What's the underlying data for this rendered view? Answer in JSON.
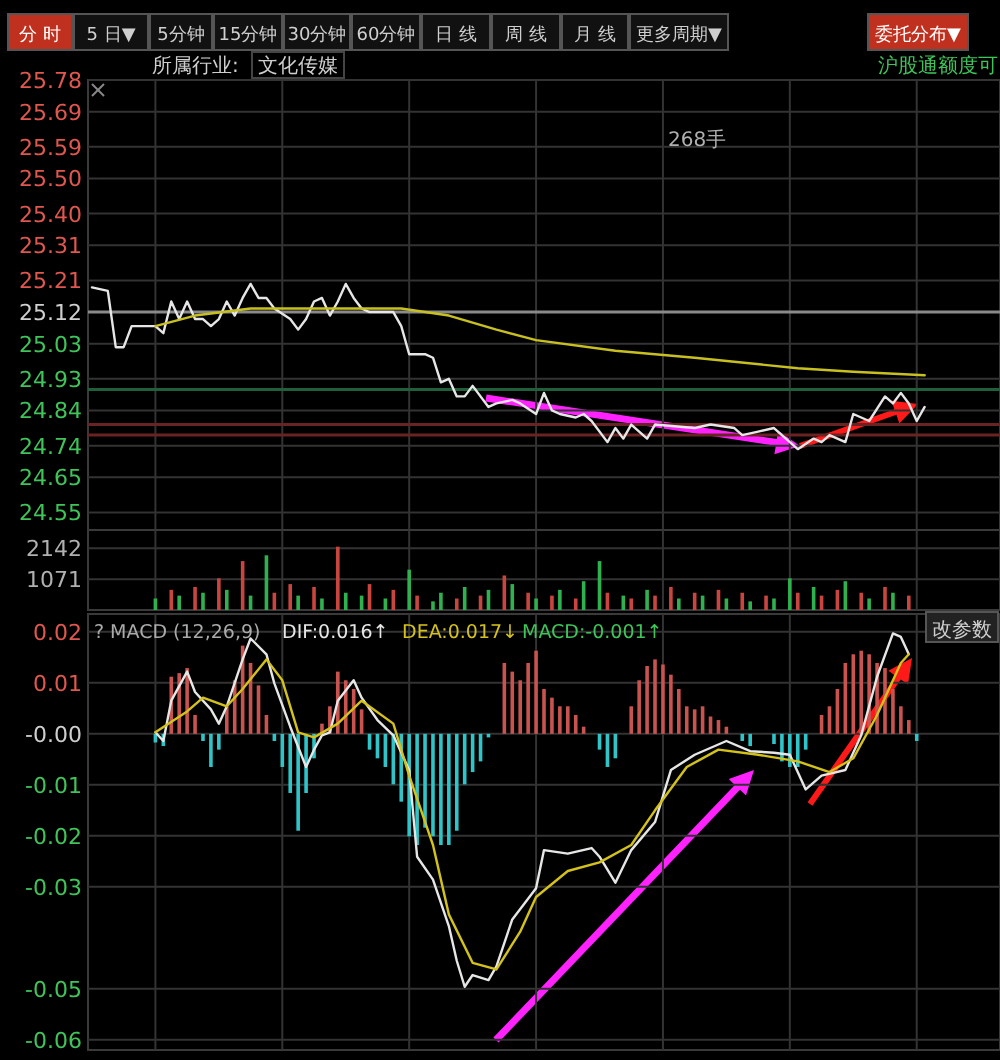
{
  "chart_data": [
    {
      "type": "line",
      "ylim": [
        24.5,
        25.78
      ],
      "grid": true,
      "tick_labels": "y",
      "categories": [
        null,
        null,
        null,
        null,
        null,
        null,
        null,
        null,
        null,
        null,
        null,
        null,
        null,
        null,
        null,
        null,
        null,
        null,
        null,
        null,
        null,
        null,
        null,
        null,
        null,
        null,
        null,
        null,
        null,
        null,
        null,
        null,
        null,
        null,
        null,
        null,
        null,
        null,
        null,
        null,
        null,
        null,
        null,
        null,
        null,
        null,
        null,
        null,
        null,
        null,
        null,
        null,
        null,
        null,
        null,
        null,
        null,
        null,
        null,
        null,
        null,
        null,
        null,
        null,
        null,
        null,
        null,
        null,
        null,
        null,
        null,
        null,
        null,
        null,
        null,
        null,
        null,
        null,
        null,
        null,
        null,
        null,
        null,
        null,
        null,
        null,
        null,
        null,
        null,
        null,
        null,
        null,
        null,
        null,
        null,
        null,
        null,
        null,
        null,
        null,
        null,
        null,
        null,
        null,
        null,
        null,
        null,
        null,
        null,
        null,
        null,
        null,
        null,
        null,
        null
      ],
      "yticks": [
        24.55,
        24.65,
        24.74,
        24.84,
        24.93,
        25.03,
        25.12,
        25.21,
        25.31,
        {
          "value": 25.4,
          "label": "25.40"
        },
        {
          "value": 25.5,
          "label": "25.50"
        },
        25.59,
        25.69,
        25.78
      ],
      "ref_lines": [
        {
          "axis": "y",
          "value": 25.12,
          "color": "#8a8a8a"
        },
        {
          "axis": "y",
          "value": 24.9,
          "color": "#1f5f3a"
        },
        {
          "axis": "y",
          "value": 24.8,
          "color": "#6a2323"
        },
        {
          "axis": "y",
          "value": 24.77,
          "color": "#6a2323"
        }
      ],
      "annotations": [
        "分 时",
        "5 日▼",
        "5分钟",
        "15分钟",
        "30分钟",
        "60分钟",
        "日 线",
        "周 线",
        "月 线",
        "更多周期▼",
        "委托分布▼",
        "所属行业:",
        "文化传媒",
        "沪股通额度可",
        "268手"
      ],
      "series": [
        {
          "color": "#e6e6e6",
          "values": [
            25.19,
            null,
            25.18,
            25.02,
            25.02,
            25.08,
            null,
            null,
            25.08,
            25.06,
            25.15,
            25.1,
            25.15,
            25.1,
            25.1,
            25.08,
            25.1,
            25.15,
            25.11,
            25.16,
            25.2,
            25.16,
            25.16,
            25.13,
            null,
            25.1,
            25.07,
            25.1,
            25.15,
            25.16,
            25.11,
            25.15,
            25.2,
            25.16,
            25.13,
            25.12,
            null,
            null,
            25.12,
            25.08,
            25.0,
            null,
            25.0,
            24.99,
            24.92,
            24.93,
            24.88,
            24.88,
            24.91,
            null,
            24.85,
            24.86,
            null,
            24.87,
            24.86,
            null,
            24.83,
            24.89,
            24.84,
            24.83,
            null,
            24.82,
            24.83,
            24.81,
            null,
            24.75,
            24.79,
            24.76,
            24.8,
            null,
            24.76,
            24.8,
            null,
            null,
            null,
            null,
            24.79,
            null,
            24.8,
            null,
            null,
            24.79,
            24.77,
            null,
            24.78,
            null,
            24.79,
            null,
            24.75,
            24.73,
            null,
            24.76,
            24.75,
            24.77,
            null,
            24.75,
            24.83,
            null,
            24.81,
            null,
            24.88,
            24.86,
            24.89,
            24.86,
            24.81,
            24.85,
            null,
            null,
            null,
            null,
            null,
            null,
            null,
            null,
            null
          ]
        },
        {
          "color": "#c8c020",
          "values": [
            null,
            null,
            null,
            null,
            null,
            null,
            null,
            null,
            25.08,
            null,
            null,
            null,
            null,
            25.11,
            null,
            null,
            null,
            null,
            null,
            null,
            25.13,
            null,
            null,
            null,
            null,
            null,
            null,
            null,
            null,
            null,
            null,
            null,
            null,
            null,
            null,
            null,
            null,
            null,
            null,
            25.13,
            null,
            null,
            null,
            null,
            null,
            25.11,
            null,
            null,
            null,
            null,
            null,
            25.07,
            null,
            null,
            null,
            null,
            25.04,
            null,
            null,
            null,
            null,
            null,
            null,
            null,
            null,
            null,
            25.01,
            null,
            null,
            null,
            null,
            null,
            null,
            null,
            null,
            null,
            24.99,
            null,
            null,
            null,
            null,
            null,
            null,
            null,
            null,
            null,
            null,
            null,
            null,
            24.96,
            null,
            null,
            null,
            null,
            null,
            null,
            24.95,
            null,
            null,
            null,
            null,
            null,
            null,
            null,
            null,
            24.94,
            null,
            null,
            null,
            null,
            null,
            null,
            null,
            null,
            null
          ]
        }
      ]
    },
    {
      "type": "bar",
      "ylim": [
        0,
        2780
      ],
      "grid": true,
      "tick_labels": "y",
      "categories": [
        null,
        null,
        null,
        null,
        null,
        null,
        null,
        null,
        null,
        null,
        null,
        null,
        null,
        null,
        null,
        null,
        null,
        null,
        null,
        null,
        null,
        null,
        null,
        null,
        null,
        null,
        null,
        null,
        null,
        null,
        null,
        null,
        null,
        null,
        null,
        null,
        null,
        null,
        null,
        null,
        null,
        null,
        null,
        null,
        null,
        null,
        null,
        null,
        null,
        null,
        null,
        null,
        null,
        null,
        null,
        null,
        null,
        null,
        null,
        null,
        null,
        null,
        null,
        null,
        null,
        null,
        null,
        null,
        null,
        null,
        null,
        null,
        null,
        null,
        null,
        null,
        null,
        null,
        null,
        null,
        null,
        null,
        null,
        null,
        null,
        null,
        null,
        null,
        null,
        null,
        null,
        null,
        null,
        null,
        null,
        null,
        null,
        null,
        null,
        null,
        null,
        null,
        null,
        null,
        null,
        null,
        null,
        null,
        null,
        null,
        null,
        null,
        null,
        null,
        null
      ],
      "yticks": [
        1071,
        2142
      ],
      "series": [
        {
          "color": "#c9453f",
          "values": [
            null,
            null,
            null,
            null,
            null,
            null,
            null,
            null,
            null,
            null,
            700,
            null,
            null,
            800,
            null,
            null,
            1100,
            null,
            null,
            1700,
            null,
            null,
            null,
            600,
            null,
            900,
            null,
            null,
            800,
            null,
            null,
            2200,
            null,
            null,
            null,
            900,
            null,
            null,
            700,
            null,
            null,
            500,
            null,
            null,
            null,
            null,
            400,
            null,
            null,
            500,
            null,
            null,
            1200,
            null,
            null,
            600,
            null,
            null,
            500,
            null,
            null,
            400,
            null,
            null,
            null,
            600,
            null,
            null,
            400,
            null,
            null,
            500,
            null,
            800,
            null,
            null,
            600,
            null,
            null,
            700,
            null,
            null,
            600,
            null,
            null,
            500,
            null,
            null,
            null,
            600,
            null,
            null,
            500,
            null,
            700,
            null,
            null,
            600,
            null,
            null,
            800,
            null,
            null,
            500,
            null,
            null,
            null,
            null,
            null,
            null,
            null,
            null,
            null,
            null,
            null
          ]
        },
        {
          "color": "#2fb14f",
          "values": [
            null,
            null,
            null,
            null,
            null,
            null,
            null,
            null,
            400,
            null,
            null,
            500,
            null,
            null,
            600,
            null,
            null,
            700,
            null,
            null,
            500,
            null,
            1900,
            null,
            null,
            null,
            500,
            null,
            null,
            400,
            null,
            null,
            600,
            null,
            500,
            null,
            null,
            400,
            null,
            null,
            1400,
            null,
            null,
            300,
            600,
            null,
            null,
            800,
            null,
            null,
            700,
            null,
            null,
            900,
            null,
            null,
            400,
            null,
            null,
            700,
            null,
            null,
            1000,
            null,
            1700,
            null,
            null,
            500,
            null,
            null,
            700,
            null,
            null,
            null,
            400,
            null,
            null,
            500,
            null,
            null,
            400,
            null,
            null,
            300,
            null,
            null,
            400,
            null,
            1100,
            null,
            null,
            800,
            null,
            null,
            null,
            1000,
            null,
            null,
            400,
            null,
            null,
            600,
            null,
            null,
            null,
            null,
            null,
            null,
            null,
            null,
            null,
            null,
            null,
            null,
            null
          ]
        }
      ]
    },
    {
      "type": "line",
      "ylim": [
        -0.062,
        0.0235
      ],
      "grid": true,
      "tick_labels": "y",
      "categories": [
        null,
        null,
        null,
        null,
        null,
        null,
        null,
        null,
        null,
        null,
        null,
        null,
        null,
        null,
        null,
        null,
        null,
        null,
        null,
        null,
        null,
        null,
        null,
        null,
        null,
        null,
        null,
        null,
        null,
        null,
        null,
        null,
        null,
        null,
        null,
        null,
        null,
        null,
        null,
        null,
        null,
        null,
        null,
        null,
        null,
        null,
        null,
        null,
        null,
        null,
        null,
        null,
        null,
        null,
        null,
        null,
        null,
        null,
        null,
        null,
        null,
        null,
        null,
        null,
        null,
        null,
        null,
        null,
        null,
        null,
        null,
        null,
        null,
        null,
        null,
        null,
        null,
        null,
        null,
        null,
        null,
        null,
        null,
        null,
        null,
        null,
        null,
        null,
        null,
        null,
        null,
        null,
        null,
        null,
        null,
        null,
        null,
        null,
        null,
        null,
        null,
        null,
        null,
        null,
        null,
        null,
        null,
        null,
        null,
        null,
        null,
        null,
        null,
        null,
        null
      ],
      "yticks": [
        {
          "value": 0.02,
          "label": "0.02"
        },
        {
          "value": 0.01,
          "label": "0.01"
        },
        {
          "value": 0,
          "label": "-0.00"
        },
        {
          "value": -0.01,
          "label": "-0.01"
        },
        {
          "value": -0.02,
          "label": "-0.02"
        },
        {
          "value": -0.03,
          "label": "-0.03"
        },
        {
          "value": -0.05,
          "label": "-0.05"
        },
        {
          "value": -0.06,
          "label": "-0.06"
        }
      ],
      "annotations": [
        "? MACD (12,26,9)",
        "DIF:0.016↑",
        "DEA:0.017↓",
        "MACD:-0.001↑",
        "改参数"
      ],
      "series": [
        {
          "type": "bar",
          "color": "#c9534f",
          "values": [
            null,
            null,
            null,
            null,
            null,
            null,
            null,
            null,
            null,
            null,
            0.0112,
            0.0119,
            0.0129,
            0.0037,
            null,
            null,
            null,
            0.0054,
            0.0105,
            0.0173,
            0.0139,
            0.0095,
            0.0037,
            null,
            null,
            null,
            null,
            null,
            null,
            0.002,
            0.0054,
            0.0122,
            0.0105,
            0.0088,
            0.0048,
            null,
            null,
            null,
            null,
            null,
            null,
            null,
            null,
            null,
            null,
            null,
            null,
            null,
            null,
            null,
            null,
            null,
            0.0139,
            0.0122,
            0.0105,
            0.0139,
            0.0163,
            0.0088,
            0.0071,
            0.0054,
            0.0054,
            0.0037,
            0.0014,
            null,
            null,
            null,
            null,
            null,
            0.0054,
            0.0105,
            0.0133,
            0.0146,
            0.0136,
            0.0116,
            0.0088,
            0.0054,
            0.0048,
            0.0054,
            0.0034,
            0.0027,
            0.0014,
            null,
            null,
            null,
            null,
            null,
            null,
            null,
            null,
            null,
            null,
            null,
            0.0037,
            0.0054,
            0.0088,
            0.0139,
            0.0156,
            0.0163,
            0.0156,
            0.0139,
            0.0129,
            0.0088,
            0.0054,
            0.0027,
            null,
            null,
            null,
            null,
            null,
            null,
            null,
            null,
            null,
            null,
            null
          ]
        },
        {
          "type": "bar",
          "color": "#2ec4c8",
          "values": [
            null,
            null,
            null,
            null,
            null,
            null,
            null,
            null,
            -0.0017,
            -0.0024,
            null,
            null,
            null,
            null,
            -0.0014,
            -0.0065,
            -0.0031,
            null,
            null,
            null,
            null,
            null,
            null,
            -0.0014,
            -0.0065,
            -0.0116,
            -0.019,
            -0.0116,
            -0.0048,
            null,
            null,
            null,
            null,
            null,
            null,
            -0.0031,
            -0.0048,
            -0.0065,
            -0.0099,
            -0.0133,
            -0.0201,
            -0.0218,
            -0.0184,
            -0.0201,
            -0.0218,
            -0.0218,
            -0.019,
            -0.0099,
            -0.0075,
            -0.0054,
            -0.0007,
            null,
            null,
            null,
            null,
            null,
            null,
            null,
            null,
            null,
            null,
            null,
            null,
            null,
            -0.0031,
            -0.0065,
            -0.0048,
            null,
            null,
            null,
            null,
            null,
            null,
            null,
            null,
            null,
            null,
            null,
            null,
            null,
            null,
            null,
            -0.0014,
            -0.0024,
            null,
            null,
            -0.002,
            -0.0054,
            -0.0065,
            -0.0065,
            -0.0031,
            null,
            null,
            null,
            null,
            null,
            null,
            null,
            null,
            null,
            null,
            null,
            null,
            null,
            -0.0014,
            null,
            null,
            null,
            null,
            null,
            null,
            null,
            null,
            null,
            null
          ]
        },
        {
          "color": "#e6e6e6",
          "values": [
            null,
            null,
            null,
            null,
            null,
            null,
            null,
            null,
            0.0003,
            -0.0014,
            0.0065,
            null,
            0.0122,
            0.0082,
            null,
            0.0048,
            0.002,
            0.0054,
            null,
            0.0146,
            0.0187,
            null,
            0.0156,
            0.0099,
            null,
            0.0014,
            null,
            -0.0065,
            -0.0031,
            -0.0003,
            0.0003,
            0.0065,
            null,
            0.0105,
            0.0071,
            null,
            0.0027,
            null,
            -0.0003,
            null,
            -0.0071,
            -0.0241,
            null,
            -0.0286,
            null,
            -0.0377,
            -0.0445,
            -0.0496,
            -0.0473,
            null,
            -0.0483,
            -0.0456,
            null,
            -0.0364,
            null,
            null,
            -0.0303,
            -0.0228,
            null,
            null,
            -0.0235,
            null,
            null,
            -0.0224,
            -0.0241,
            null,
            -0.0292,
            null,
            -0.0228,
            null,
            null,
            -0.0173,
            null,
            -0.0071,
            null,
            null,
            -0.0041,
            null,
            null,
            null,
            -0.0014,
            null,
            null,
            -0.0034,
            null,
            null,
            -0.0037,
            null,
            -0.0041,
            null,
            -0.0109,
            null,
            -0.0082,
            null,
            null,
            -0.0071,
            null,
            -0.0003,
            null,
            0.0112,
            null,
            0.0197,
            0.019,
            0.0156,
            null,
            null,
            null,
            null,
            null,
            null,
            null,
            null,
            null,
            null,
            null
          ]
        },
        {
          "color": "#d4c21a",
          "values": [
            null,
            null,
            null,
            null,
            null,
            null,
            null,
            null,
            0.0003,
            null,
            null,
            null,
            0.0044,
            null,
            0.0071,
            null,
            null,
            0.0054,
            null,
            0.0088,
            null,
            null,
            0.0146,
            null,
            0.0105,
            null,
            0.0003,
            null,
            -0.0007,
            null,
            null,
            0.002,
            null,
            null,
            0.0065,
            null,
            null,
            null,
            0.002,
            null,
            -0.0082,
            null,
            null,
            -0.0218,
            null,
            -0.0354,
            null,
            null,
            -0.0449,
            null,
            null,
            -0.0462,
            null,
            null,
            -0.0388,
            null,
            -0.032,
            null,
            null,
            null,
            -0.0269,
            null,
            null,
            null,
            -0.0252,
            null,
            null,
            null,
            -0.0218,
            null,
            null,
            -0.015,
            null,
            null,
            null,
            -0.0065,
            null,
            null,
            null,
            -0.0031,
            null,
            null,
            null,
            null,
            -0.0041,
            null,
            null,
            null,
            null,
            -0.0054,
            null,
            null,
            null,
            -0.0075,
            null,
            null,
            -0.0048,
            null,
            null,
            0.0037,
            null,
            null,
            0.0139,
            0.0156,
            null,
            null,
            null,
            null,
            null,
            null,
            null,
            null,
            null,
            null,
            null
          ]
        }
      ]
    }
  ]
}
